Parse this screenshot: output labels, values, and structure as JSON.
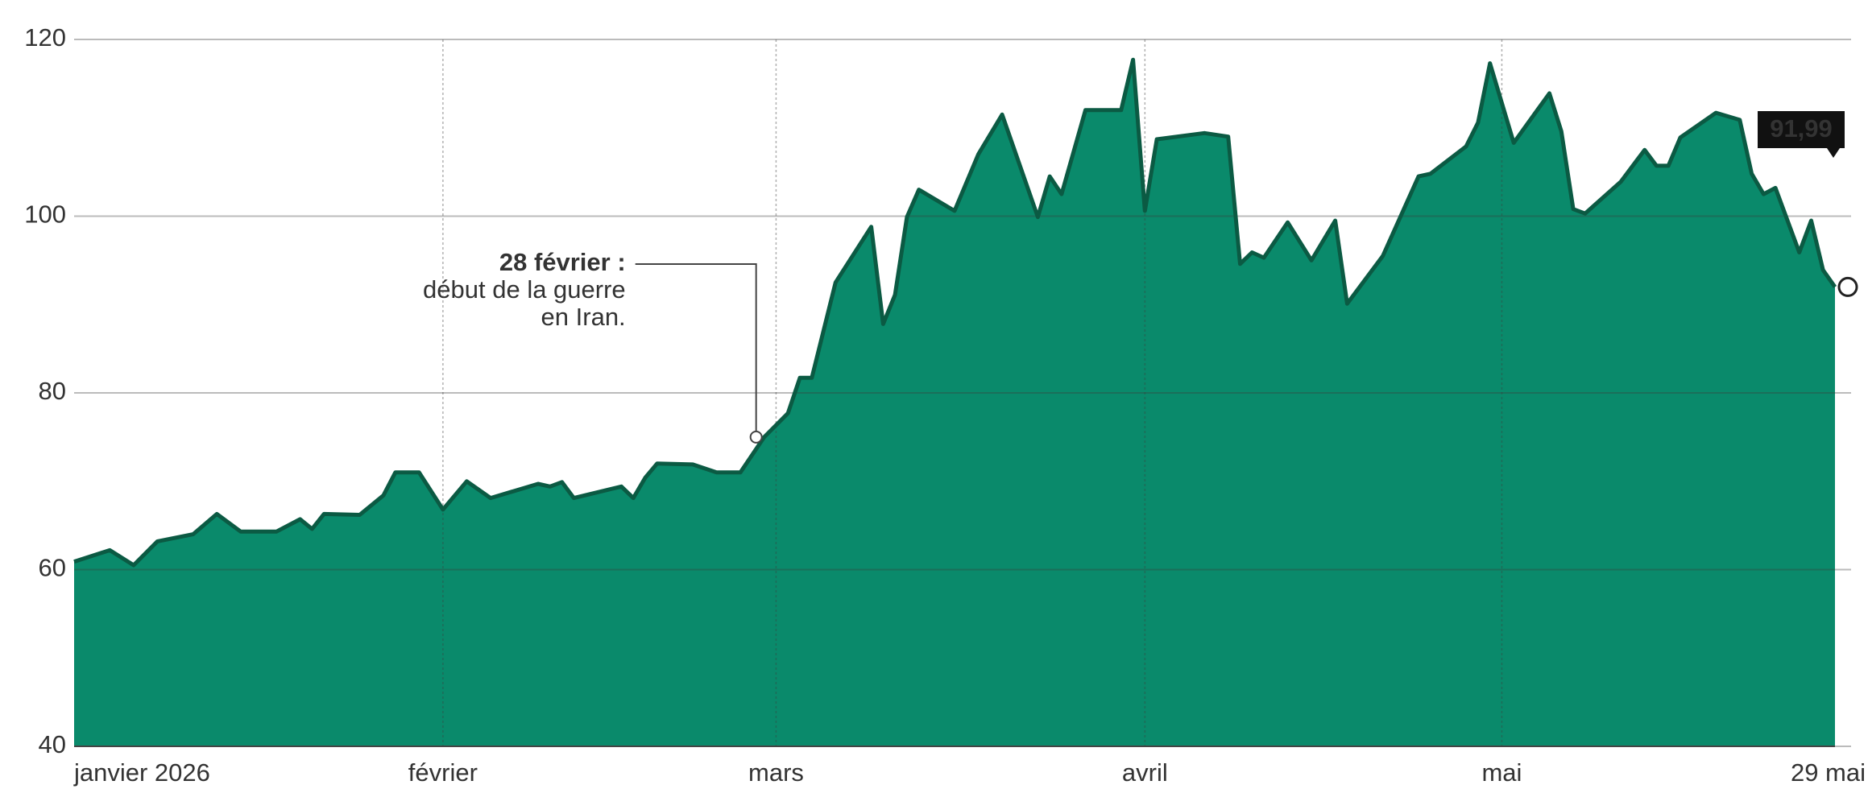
{
  "chart_data": {
    "type": "area",
    "x": [
      "2026-01-01",
      "2026-01-04",
      "2026-01-06",
      "2026-01-08",
      "2026-01-11",
      "2026-01-13",
      "2026-01-15",
      "2026-01-18",
      "2026-01-20",
      "2026-01-21",
      "2026-01-22",
      "2026-01-25",
      "2026-01-27",
      "2026-01-28",
      "2026-01-30",
      "2026-02-01",
      "2026-02-03",
      "2026-02-05",
      "2026-02-09",
      "2026-02-10",
      "2026-02-11",
      "2026-02-12",
      "2026-02-16",
      "2026-02-17",
      "2026-02-18",
      "2026-02-19",
      "2026-02-22",
      "2026-02-24",
      "2026-02-26",
      "2026-02-28",
      "2026-03-02",
      "2026-03-03",
      "2026-03-04",
      "2026-03-06",
      "2026-03-09",
      "2026-03-10",
      "2026-03-11",
      "2026-03-12",
      "2026-03-13",
      "2026-03-16",
      "2026-03-18",
      "2026-03-20",
      "2026-03-23",
      "2026-03-24",
      "2026-03-25",
      "2026-03-27",
      "2026-03-30",
      "2026-03-31",
      "2026-04-01",
      "2026-04-02",
      "2026-04-06",
      "2026-04-08",
      "2026-04-09",
      "2026-04-10",
      "2026-04-11",
      "2026-04-13",
      "2026-04-15",
      "2026-04-17",
      "2026-04-18",
      "2026-04-21",
      "2026-04-24",
      "2026-04-25",
      "2026-04-28",
      "2026-04-29",
      "2026-04-30",
      "2026-05-02",
      "2026-05-05",
      "2026-05-06",
      "2026-05-07",
      "2026-05-08",
      "2026-05-11",
      "2026-05-13",
      "2026-05-14",
      "2026-05-15",
      "2026-05-16",
      "2026-05-19",
      "2026-05-21",
      "2026-05-22",
      "2026-05-23",
      "2026-05-24",
      "2026-05-26",
      "2026-05-27",
      "2026-05-28",
      "2026-05-29"
    ],
    "values": [
      60.9,
      62.2,
      60.5,
      63.2,
      64,
      66.3,
      64.3,
      64.3,
      65.7,
      64.6,
      66.3,
      66.2,
      68.4,
      71,
      71,
      66.8,
      70,
      68.1,
      69.7,
      69.4,
      69.9,
      68.1,
      69.4,
      68.1,
      70.4,
      72,
      71.9,
      71,
      71,
      75,
      77.7,
      81.7,
      81.7,
      92.5,
      98.8,
      87.8,
      91.1,
      99.9,
      103,
      100.6,
      107,
      111.5,
      99.9,
      104.5,
      102.5,
      112,
      112,
      117.7,
      100.6,
      108.7,
      109.4,
      109,
      94.6,
      95.9,
      95.3,
      99.3,
      95,
      99.5,
      90.1,
      95.5,
      104.5,
      104.8,
      107.9,
      110.6,
      117.3,
      108.3,
      113.9,
      109.6,
      100.8,
      100.3,
      103.9,
      107.5,
      105.7,
      105.7,
      108.9,
      111.7,
      110.9,
      104.8,
      102.5,
      103.2,
      95.9,
      99.5,
      93.9,
      91.99
    ],
    "value_labels": [
      null,
      null,
      null,
      null,
      null,
      null,
      null,
      null,
      null,
      null,
      null,
      null,
      null,
      null,
      null,
      null,
      null,
      null,
      null,
      null,
      null,
      null,
      null,
      null,
      null,
      null,
      null,
      null,
      null,
      null,
      null,
      null,
      null,
      null,
      null,
      null,
      null,
      null,
      null,
      null,
      null,
      null,
      null,
      null,
      null,
      null,
      null,
      null,
      null,
      null,
      null,
      null,
      null,
      null,
      null,
      null,
      null,
      null,
      null,
      null,
      null,
      null,
      null,
      null,
      null,
      null,
      null,
      null,
      null,
      null,
      null,
      null,
      null,
      null,
      null,
      null,
      null,
      null,
      null,
      null,
      null,
      null,
      null,
      "91,99"
    ],
    "color": "#0a8a6b",
    "line_color": "#0b5a43",
    "xlim": [
      "2026-01-01",
      "2026-05-29"
    ],
    "xticks": [
      {
        "value": "2026-01-01",
        "label": "janvier 2026"
      },
      {
        "value": "2026-02-01",
        "label": "février"
      },
      {
        "value": "2026-03-01",
        "label": "mars"
      },
      {
        "value": "2026-04-01",
        "label": "avril"
      },
      {
        "value": "2026-05-01",
        "label": "mai"
      },
      {
        "value": "2026-05-29",
        "label": "29 mai"
      }
    ],
    "ylim": [
      40,
      120
    ],
    "yticks": [
      40,
      60,
      80,
      100,
      120
    ],
    "grid": true,
    "annotation": {
      "x": "2026-02-28",
      "title": "28 février :",
      "lines": [
        "début de la guerre",
        "en Iran."
      ]
    }
  }
}
